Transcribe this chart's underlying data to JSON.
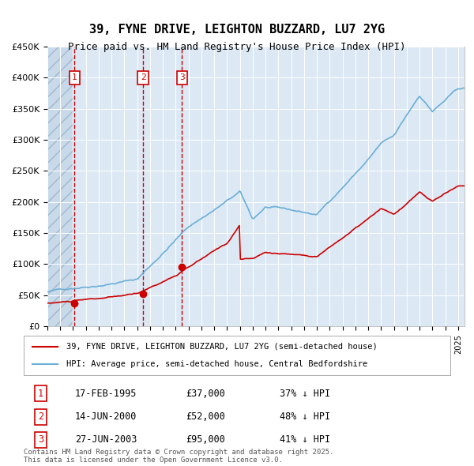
{
  "title_line1": "39, FYNE DRIVE, LEIGHTON BUZZARD, LU7 2YG",
  "title_line2": "Price paid vs. HM Land Registry's House Price Index (HPI)",
  "hpi_color": "#6baed6",
  "price_color": "#cc0000",
  "bg_color": "#dce9f5",
  "plot_bg_color": "#dce9f5",
  "hatch_color": "#b0c8e0",
  "ylim": [
    0,
    450000
  ],
  "yticks": [
    0,
    50000,
    100000,
    150000,
    200000,
    250000,
    300000,
    350000,
    400000,
    450000
  ],
  "transactions": [
    {
      "num": 1,
      "date": "17-FEB-1995",
      "price": 37000,
      "pct": "37%",
      "year": 1995.12
    },
    {
      "num": 2,
      "date": "14-JUN-2000",
      "price": 52000,
      "pct": "48%",
      "year": 2000.45
    },
    {
      "num": 3,
      "date": "27-JUN-2003",
      "price": 95000,
      "pct": "41%",
      "year": 2003.49
    }
  ],
  "legend_line1": "39, FYNE DRIVE, LEIGHTON BUZZARD, LU7 2YG (semi-detached house)",
  "legend_line2": "HPI: Average price, semi-detached house, Central Bedfordshire",
  "footnote": "Contains HM Land Registry data © Crown copyright and database right 2025.\nThis data is licensed under the Open Government Licence v3.0.",
  "table": [
    [
      "1",
      "17-FEB-1995",
      "£37,000",
      "37% ↓ HPI"
    ],
    [
      "2",
      "14-JUN-2000",
      "£52,000",
      "48% ↓ HPI"
    ],
    [
      "3",
      "27-JUN-2003",
      "£95,000",
      "41% ↓ HPI"
    ]
  ]
}
